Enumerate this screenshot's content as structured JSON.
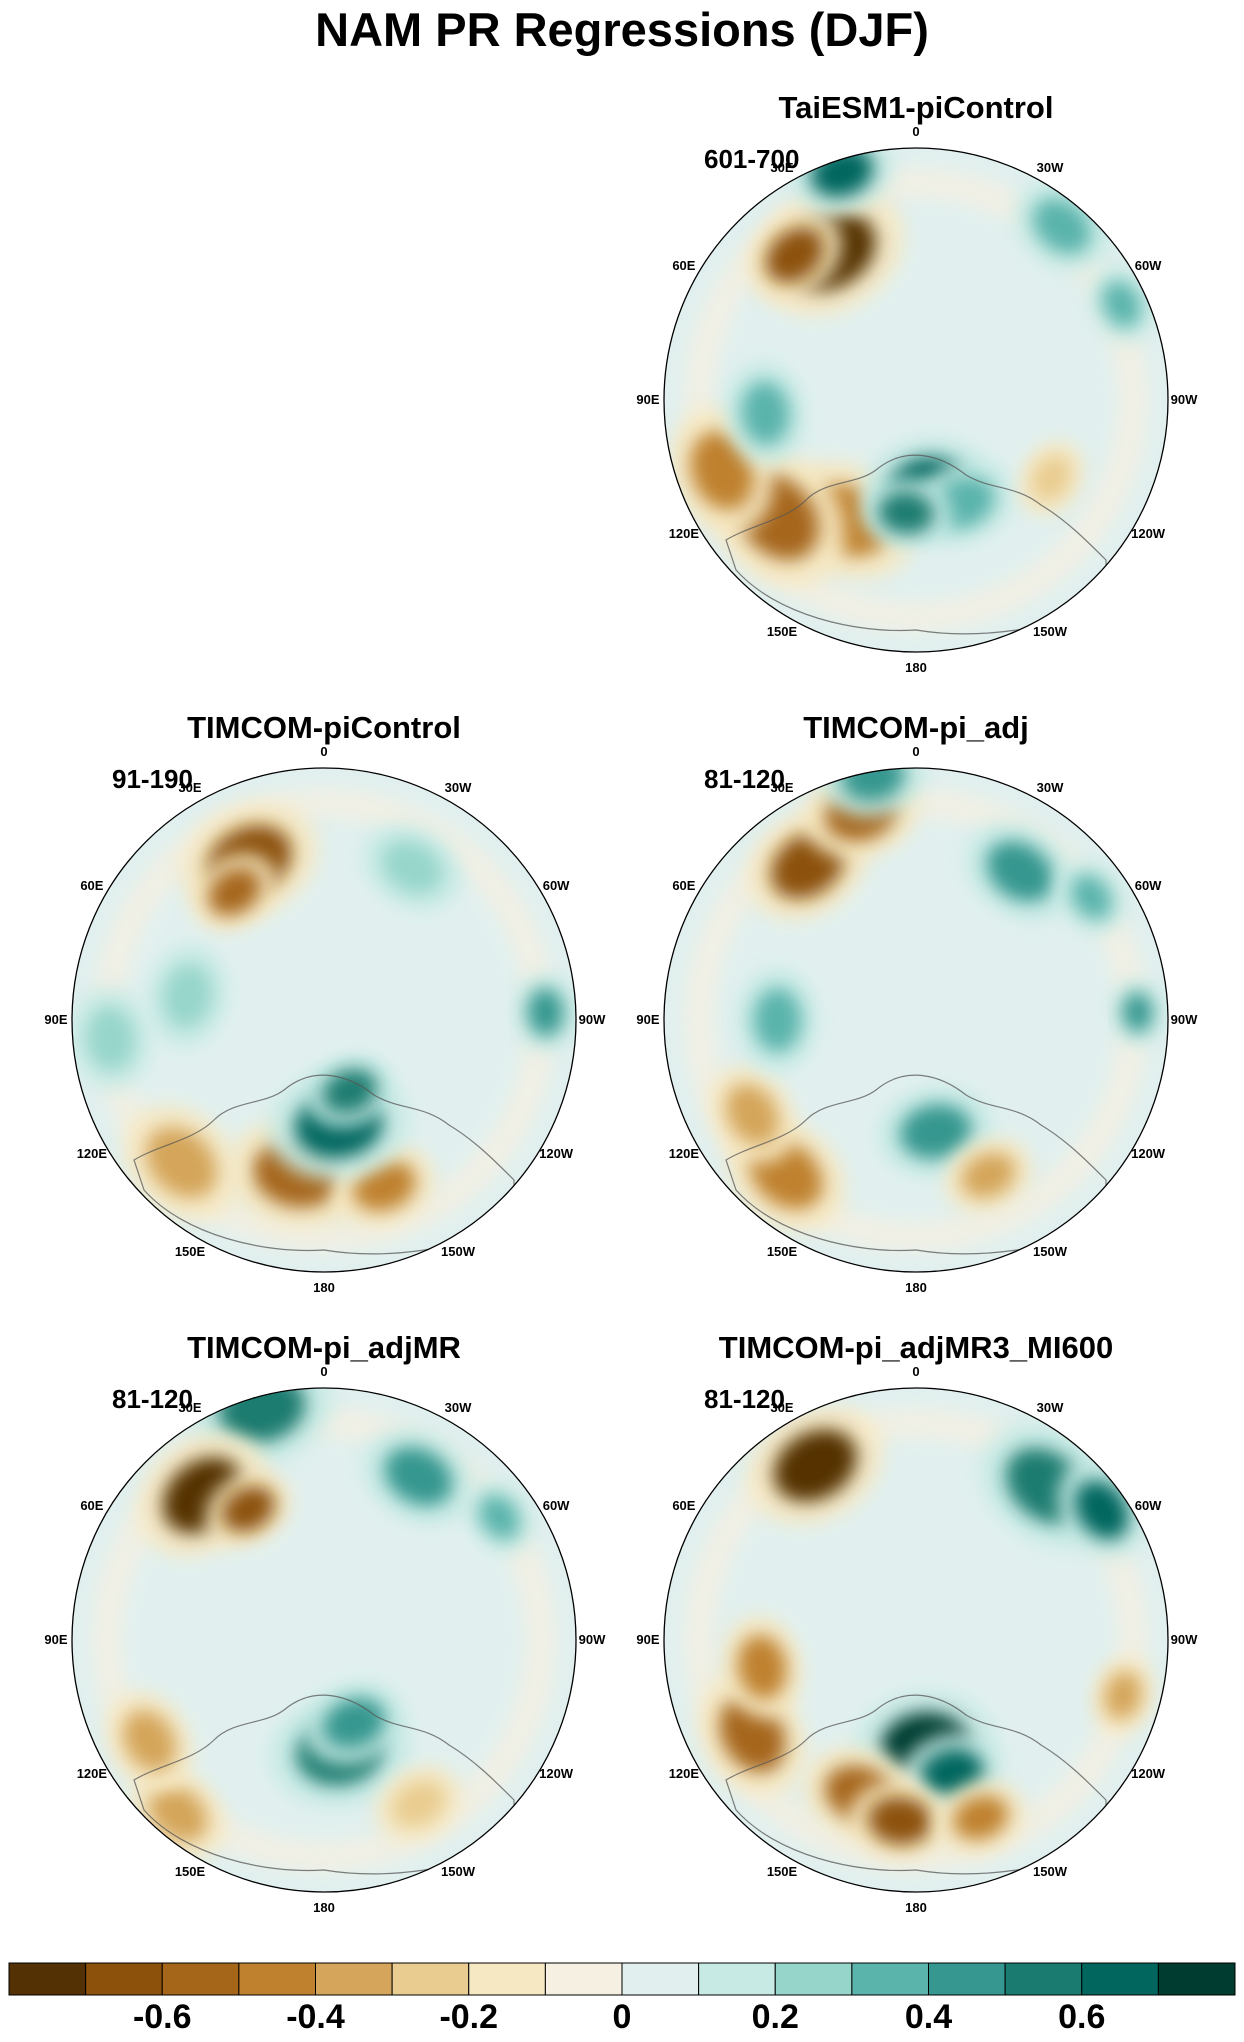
{
  "title": "NAM PR Regressions (DJF)",
  "longitude_labels": [
    "180",
    "150E",
    "120E",
    "90E",
    "60E",
    "30E",
    "0",
    "30W",
    "60W",
    "90W",
    "120W",
    "150W"
  ],
  "panels": [
    {
      "title": "TaiESM1-piControl",
      "period": "601-700"
    },
    {
      "title": "TIMCOM-piControl",
      "period": "91-190"
    },
    {
      "title": "TIMCOM-pi_adj",
      "period": "81-120"
    },
    {
      "title": "TIMCOM-pi_adjMR",
      "period": "81-120"
    },
    {
      "title": "TIMCOM-pi_adjMR3_MI600",
      "period": "81-120"
    }
  ],
  "colorbar": {
    "colors": [
      "#543005",
      "#8c510a",
      "#a6661a",
      "#bf812d",
      "#d4a55a",
      "#e9cc8f",
      "#f6e8c3",
      "#f5f0e2",
      "#e1f0ef",
      "#c7eae5",
      "#96d5ca",
      "#5ab4ac",
      "#35978f",
      "#1a7b70",
      "#01665e",
      "#003c30"
    ],
    "labels": [
      "-0.6",
      "-0.4",
      "-0.2",
      "0",
      "0.2",
      "0.4",
      "0.6"
    ],
    "values": [
      -0.6,
      -0.4,
      -0.2,
      0,
      0.2,
      0.4,
      0.6
    ],
    "range": [
      -0.8,
      0.8
    ]
  }
}
